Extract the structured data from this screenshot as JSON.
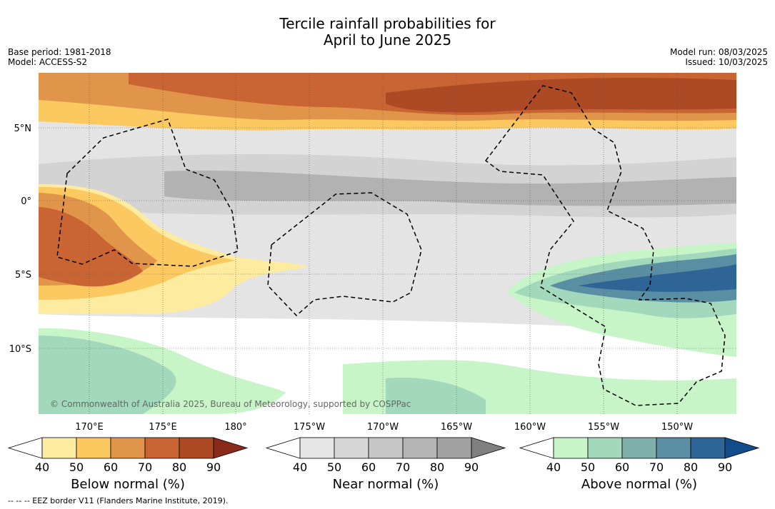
{
  "title_line1": "Tercile rainfall probabilities for",
  "title_line2": "April to June 2025",
  "meta_left": [
    "Base period: 1981-2018",
    "Model: ACCESS-S2"
  ],
  "meta_right": [
    "Model run: 08/03/2025",
    "Issued: 10/03/2025"
  ],
  "lat_labels": [
    "5°N",
    "0°",
    "5°S",
    "10°S"
  ],
  "lon_labels": [
    "170°E",
    "175°E",
    "180°",
    "175°W",
    "170°W",
    "165°W",
    "160°W",
    "155°W",
    "150°W"
  ],
  "copyright": "© Commonwealth of Australia 2025, Bureau of Meteorology, supported by COSPPac",
  "legends": [
    {
      "caption": "Below normal (%)",
      "ticks": [
        "40",
        "50",
        "60",
        "70",
        "80",
        "90"
      ],
      "colors": [
        "#ffffff",
        "#fdeca0",
        "#fcc860",
        "#e0954a",
        "#c96433",
        "#ad4a26",
        "#8a2a1a"
      ]
    },
    {
      "caption": "Near normal (%)",
      "ticks": [
        "40",
        "50",
        "60",
        "70",
        "80",
        "90"
      ],
      "colors": [
        "#ffffff",
        "#e6e6e6",
        "#d6d6d6",
        "#c6c6c6",
        "#b4b4b4",
        "#a2a2a2",
        "#808080"
      ]
    },
    {
      "caption": "Above normal (%)",
      "ticks": [
        "40",
        "50",
        "60",
        "70",
        "80",
        "90"
      ],
      "colors": [
        "#ffffff",
        "#c8f5c8",
        "#a2d8bc",
        "#7db0aa",
        "#5a8ea2",
        "#2e6496",
        "#134c8a"
      ]
    }
  ],
  "footer": "--  --  -- EEZ border V11 (Flanders Marine Institute, 2019)."
}
